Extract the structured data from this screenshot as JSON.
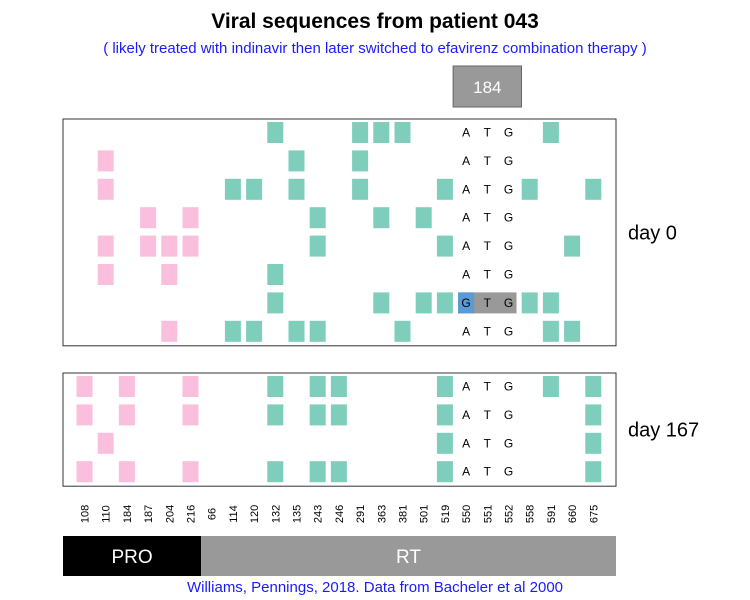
{
  "title": "Viral sequences from patient 043",
  "subtitle": "( likely treated with indinavir then later switched to efavirenz combination therapy )",
  "caption": "Williams, Pennings, 2018. Data from Bacheler et al 2000",
  "colors": {
    "pro_mutation": "#f9bfdc",
    "rt_mutation": "#7fcdbb",
    "highlight_mutant": "#5b9bd5",
    "highlight_band": "#999999",
    "pro_bar": "#000000",
    "rt_bar": "#999999",
    "header_box": "#999999"
  },
  "chart_data": {
    "type": "heatmap",
    "title": "Viral sequences from patient 043",
    "subtitle": "( likely treated with indinavir then later switched to efavirenz combination therapy )",
    "codon_header": "184",
    "positions": [
      "108",
      "110",
      "184",
      "187",
      "204",
      "216",
      "66",
      "114",
      "120",
      "132",
      "135",
      "243",
      "246",
      "291",
      "363",
      "381",
      "501",
      "519",
      "550",
      "551",
      "552",
      "558",
      "591",
      "660",
      "675"
    ],
    "position_genes": [
      "PRO",
      "PRO",
      "PRO",
      "PRO",
      "PRO",
      "PRO",
      "RT",
      "RT",
      "RT",
      "RT",
      "RT",
      "RT",
      "RT",
      "RT",
      "RT",
      "RT",
      "RT",
      "RT",
      "RT",
      "RT",
      "RT",
      "RT",
      "RT",
      "RT",
      "RT"
    ],
    "codon_columns": [
      "550",
      "551",
      "552"
    ],
    "regions": [
      {
        "name": "PRO",
        "start_index": 0,
        "end_index": 5
      },
      {
        "name": "RT",
        "start_index": 6,
        "end_index": 24
      }
    ],
    "panels": [
      {
        "label": "day 0",
        "sequences": [
          {
            "mutations": [
              "132",
              "291",
              "363",
              "381",
              "591"
            ],
            "codon": [
              "A",
              "T",
              "G"
            ]
          },
          {
            "mutations": [
              "110",
              "135",
              "291"
            ],
            "codon": [
              "A",
              "T",
              "G"
            ]
          },
          {
            "mutations": [
              "110",
              "114",
              "120",
              "135",
              "291",
              "519",
              "558",
              "675"
            ],
            "codon": [
              "A",
              "T",
              "G"
            ]
          },
          {
            "mutations": [
              "187",
              "216",
              "243",
              "363",
              "501"
            ],
            "codon": [
              "A",
              "T",
              "G"
            ]
          },
          {
            "mutations": [
              "110",
              "187",
              "204",
              "216",
              "243",
              "519",
              "660"
            ],
            "codon": [
              "A",
              "T",
              "G"
            ]
          },
          {
            "mutations": [
              "110",
              "204",
              "132"
            ],
            "codon": [
              "A",
              "T",
              "G"
            ]
          },
          {
            "mutations": [
              "132",
              "363",
              "501",
              "519",
              "558",
              "591"
            ],
            "codon": [
              "G",
              "T",
              "G"
            ],
            "highlight": true
          },
          {
            "mutations": [
              "204",
              "114",
              "120",
              "135",
              "243",
              "381",
              "591",
              "660"
            ],
            "codon": [
              "A",
              "T",
              "G"
            ]
          }
        ]
      },
      {
        "label": "day 167",
        "sequences": [
          {
            "mutations": [
              "108",
              "184",
              "216",
              "132",
              "243",
              "246",
              "519",
              "591",
              "675"
            ],
            "codon": [
              "A",
              "T",
              "G"
            ]
          },
          {
            "mutations": [
              "108",
              "184",
              "216",
              "132",
              "243",
              "246",
              "519",
              "675"
            ],
            "codon": [
              "A",
              "T",
              "G"
            ]
          },
          {
            "mutations": [
              "110",
              "519",
              "675"
            ],
            "codon": [
              "A",
              "T",
              "G"
            ]
          },
          {
            "mutations": [
              "108",
              "184",
              "216",
              "132",
              "243",
              "246",
              "519",
              "675"
            ],
            "codon": [
              "A",
              "T",
              "G"
            ]
          }
        ]
      }
    ],
    "caption": "Williams, Pennings, 2018. Data from Bacheler et al 2000"
  }
}
